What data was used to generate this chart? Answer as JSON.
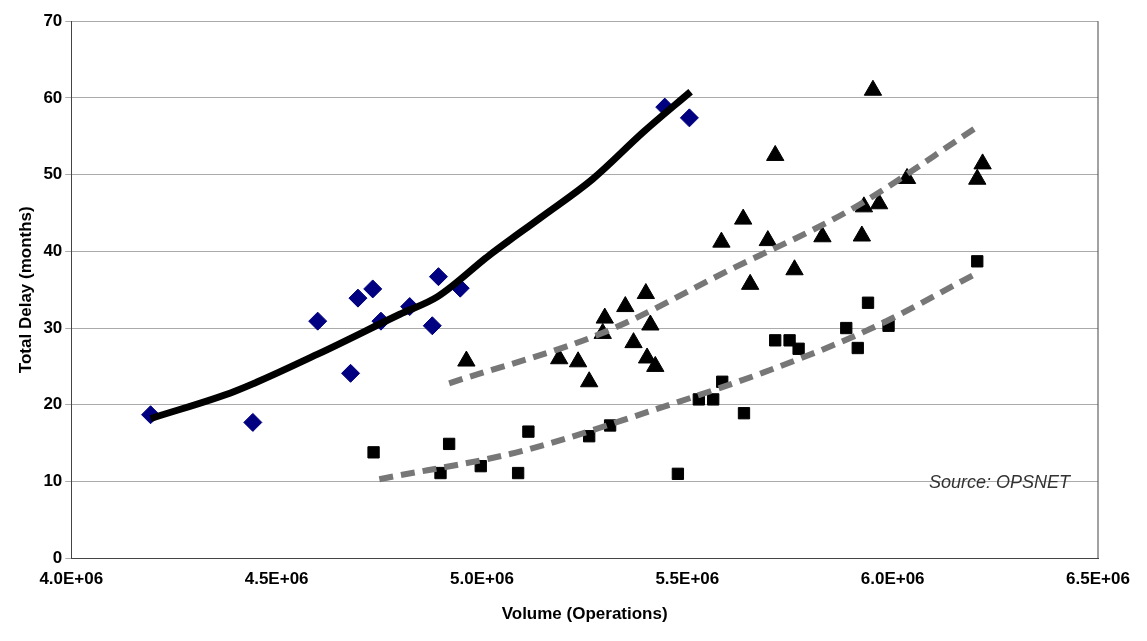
{
  "chart_data": {
    "type": "scatter",
    "xlabel": "Volume (Operations)",
    "ylabel": "Total Delay (months)",
    "xlim": [
      4000000,
      6500000
    ],
    "xticks": [
      {
        "value": 4000000,
        "label": "4.0E+06"
      },
      {
        "value": 4500000,
        "label": "4.5E+06"
      },
      {
        "value": 5000000,
        "label": "5.0E+06"
      },
      {
        "value": 5500000,
        "label": "5.5E+06"
      },
      {
        "value": 6000000,
        "label": "6.0E+06"
      },
      {
        "value": 6500000,
        "label": "6.5E+06"
      }
    ],
    "ylim": [
      0,
      70
    ],
    "yticks": [
      0,
      10,
      20,
      30,
      40,
      50,
      60,
      70
    ],
    "grid": "y",
    "legend": false,
    "annotations": [
      "Source: OPSNET"
    ],
    "series": [
      {
        "type": "scatter",
        "marker": "diamond",
        "color": "#000080",
        "x": [
          4193000,
          4442000,
          4600000,
          4680000,
          4698000,
          4734000,
          4754000,
          4824000,
          4879000,
          4894000,
          4947000,
          5445000,
          5505000
        ],
        "values": [
          18.7,
          17.7,
          30.9,
          24.1,
          33.9,
          35.1,
          30.9,
          32.8,
          30.3,
          36.7,
          35.2,
          58.8,
          57.4
        ]
      },
      {
        "type": "scatter",
        "marker": "triangle",
        "color": "#000000",
        "x": [
          4962000,
          5188000,
          5234000,
          5261000,
          5294000,
          5299000,
          5349000,
          5369000,
          5399000,
          5402000,
          5410000,
          5422000,
          5583000,
          5636000,
          5653000,
          5696000,
          5714000,
          5761000,
          5829000,
          5925000,
          5930000,
          5952000,
          5967000,
          6035000,
          6206000,
          6219000
        ],
        "values": [
          25.7,
          26.0,
          25.6,
          23.0,
          29.3,
          31.3,
          32.8,
          28.1,
          34.5,
          26.1,
          30.4,
          25.0,
          41.2,
          44.2,
          35.7,
          41.4,
          52.5,
          37.6,
          41.9,
          42.0,
          45.8,
          61.0,
          46.2,
          49.5,
          49.4,
          51.4
        ]
      },
      {
        "type": "scatter",
        "marker": "square",
        "color": "#000000",
        "x": [
          4736000,
          4899000,
          4920000,
          4997000,
          5088000,
          5113000,
          5261000,
          5312000,
          5477000,
          5528000,
          5563000,
          5585000,
          5638000,
          5714000,
          5749000,
          5771000,
          5887000,
          5915000,
          5940000,
          5990000,
          6206000
        ],
        "values": [
          13.8,
          11.1,
          14.9,
          12.0,
          11.1,
          16.5,
          15.9,
          17.3,
          11.0,
          20.7,
          20.7,
          23.0,
          18.9,
          28.4,
          28.4,
          27.3,
          30.0,
          27.4,
          33.3,
          30.3,
          38.7
        ]
      },
      {
        "type": "line",
        "marker": "none",
        "line_style": "solid",
        "color": "#000000",
        "x": [
          4193000,
          4400000,
          4600000,
          4800000,
          4892000,
          5018000,
          5143000,
          5269000,
          5394000,
          5508000
        ],
        "values": [
          18.2,
          21.8,
          26.6,
          31.8,
          34.1,
          39.5,
          44.4,
          49.4,
          55.6,
          60.8
        ]
      },
      {
        "type": "line",
        "marker": "none",
        "line_style": "dashed",
        "color": "#777777",
        "x": [
          4920000,
          5300000,
          5600000,
          5900000,
          6200000
        ],
        "values": [
          22.8,
          29.5,
          37.5,
          45.5,
          56.0
        ]
      },
      {
        "type": "line",
        "marker": "none",
        "line_style": "dashed",
        "color": "#777777",
        "x": [
          4750000,
          5100000,
          5400000,
          5700000,
          5950000,
          6200000
        ],
        "values": [
          10.3,
          14.0,
          19.0,
          24.5,
          30.0,
          37.0
        ]
      }
    ]
  }
}
